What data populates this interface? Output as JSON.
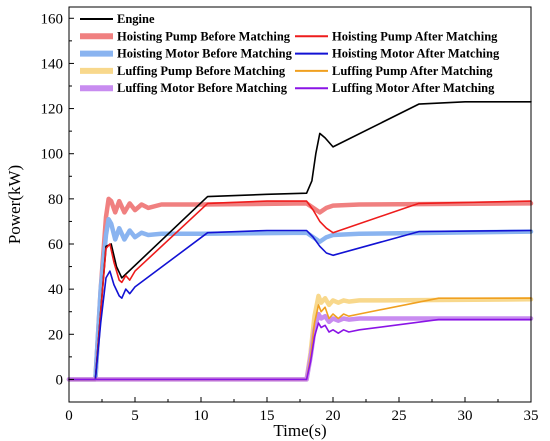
{
  "chart_data": {
    "type": "line",
    "title": "",
    "xlabel": "Time(s)",
    "ylabel": "Power(kW)",
    "xlim": [
      0,
      35
    ],
    "ylim": [
      -10,
      165
    ],
    "xticks": [
      0,
      5,
      10,
      15,
      20,
      25,
      30,
      35
    ],
    "yticks": [
      0,
      20,
      40,
      60,
      80,
      100,
      120,
      140,
      160
    ],
    "grid": false,
    "legend_position": "top",
    "series": [
      {
        "name": "Engine",
        "color": "#000000",
        "style": "thin",
        "x": [
          0,
          2.0,
          2.4,
          2.8,
          3.2,
          3.6,
          4.0,
          10.5,
          15.0,
          18.0,
          18.4,
          18.7,
          19.0,
          19.4,
          20.0,
          26.5,
          30.0,
          35.0
        ],
        "y": [
          0,
          0,
          30,
          59,
          60,
          50,
          45,
          81,
          82,
          82.5,
          88,
          100,
          109,
          107,
          103,
          122,
          123,
          123
        ]
      },
      {
        "name": "Hoisting Pump Before Matching",
        "color": "#f08080",
        "style": "thick",
        "x": [
          0,
          2.0,
          2.4,
          2.8,
          3.0,
          3.2,
          3.5,
          3.8,
          4.2,
          4.6,
          5.0,
          5.5,
          6.0,
          7.0,
          10.0,
          18.0,
          18.5,
          19.0,
          19.5,
          20.0,
          22.0,
          35.0
        ],
        "y": [
          0,
          0,
          40,
          72,
          80,
          79,
          74,
          79,
          74,
          78,
          75,
          77.5,
          76,
          77.5,
          77.5,
          78,
          76,
          74,
          76,
          77,
          77.5,
          78
        ]
      },
      {
        "name": "Hoisting Pump After Matching",
        "color": "#ee1c1c",
        "style": "thin",
        "x": [
          0,
          2.0,
          2.4,
          2.8,
          3.1,
          3.4,
          3.8,
          4.0,
          4.3,
          4.6,
          5.0,
          10.5,
          15.0,
          18.0,
          18.5,
          19.0,
          19.5,
          20.0,
          26.5,
          35.0
        ],
        "y": [
          0,
          0,
          30,
          58,
          60,
          52,
          44,
          43,
          46,
          44,
          48,
          78,
          79,
          79,
          75,
          70,
          67,
          65,
          78,
          79
        ]
      },
      {
        "name": "Hoisting Motor Before Matching",
        "color": "#8ab4f0",
        "style": "thick",
        "x": [
          0,
          2.0,
          2.4,
          2.8,
          3.0,
          3.2,
          3.5,
          3.8,
          4.2,
          4.6,
          5.0,
          5.5,
          6.0,
          7.0,
          10.0,
          18.0,
          18.5,
          19.0,
          19.5,
          20.0,
          22.0,
          35.0
        ],
        "y": [
          0,
          0,
          40,
          64,
          71,
          69,
          62,
          67,
          62,
          66,
          63,
          65,
          64,
          64.5,
          64.5,
          65,
          63,
          61,
          63,
          64,
          64.5,
          65.5
        ]
      },
      {
        "name": "Hoisting Motor After Matching",
        "color": "#1212d4",
        "style": "thin",
        "x": [
          0,
          2.0,
          2.4,
          2.8,
          3.1,
          3.4,
          3.8,
          4.0,
          4.3,
          4.6,
          5.0,
          10.5,
          15.0,
          18.0,
          18.5,
          19.0,
          19.5,
          20.0,
          26.5,
          35.0
        ],
        "y": [
          0,
          0,
          25,
          45,
          48,
          42,
          37,
          36,
          40,
          38,
          41,
          65,
          66,
          66,
          63,
          59,
          56,
          55,
          65.5,
          66
        ]
      },
      {
        "name": "Luffing Pump Before Matching",
        "color": "#f8d88c",
        "style": "thick",
        "x": [
          0,
          18.0,
          18.3,
          18.6,
          18.9,
          19.1,
          19.4,
          19.7,
          20.0,
          20.4,
          20.8,
          21.2,
          22.0,
          24.0,
          35.0
        ],
        "y": [
          0,
          0,
          12,
          28,
          37,
          34,
          36,
          33,
          35,
          34,
          35,
          34.5,
          35,
          35,
          35.5
        ]
      },
      {
        "name": "Luffing Pump After Matching",
        "color": "#f0a020",
        "style": "thin",
        "x": [
          0,
          18.0,
          18.3,
          18.6,
          18.9,
          19.1,
          19.4,
          19.7,
          20.0,
          20.4,
          20.8,
          21.2,
          22.0,
          28.0,
          35.0
        ],
        "y": [
          0,
          0,
          10,
          25,
          33,
          30,
          32,
          27,
          29,
          27,
          29,
          28,
          29,
          36,
          36
        ]
      },
      {
        "name": "Luffing Motor Before Matching",
        "color": "#c88cf0",
        "style": "thick",
        "x": [
          0,
          18.0,
          18.3,
          18.6,
          18.9,
          19.1,
          19.4,
          19.7,
          20.0,
          20.4,
          20.8,
          21.2,
          22.0,
          24.0,
          35.0
        ],
        "y": [
          0,
          0,
          10,
          22,
          29,
          27,
          28,
          25.5,
          27,
          26,
          27,
          26.5,
          27,
          27,
          27
        ]
      },
      {
        "name": "Luffing Motor After Matching",
        "color": "#8a14e6",
        "style": "thin",
        "x": [
          0,
          18.0,
          18.3,
          18.6,
          18.9,
          19.1,
          19.4,
          19.7,
          20.0,
          20.4,
          20.8,
          21.2,
          22.0,
          28.0,
          35.0
        ],
        "y": [
          0,
          0,
          8,
          19,
          25,
          23,
          24,
          21,
          22,
          20.5,
          22,
          21,
          22,
          26.5,
          26.5
        ]
      }
    ]
  }
}
